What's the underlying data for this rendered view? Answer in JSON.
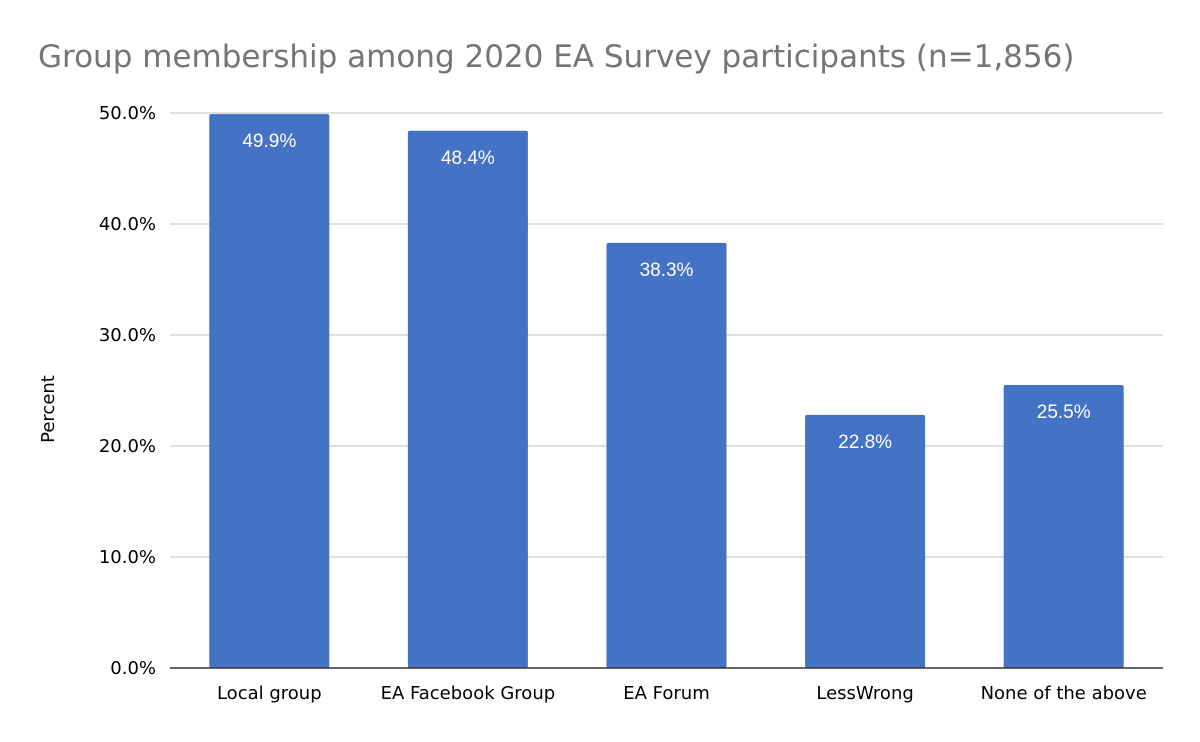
{
  "chart_data": {
    "type": "bar",
    "title": "Group membership among 2020 EA Survey participants (n=1,856)",
    "xlabel": "",
    "ylabel": "Percent",
    "categories": [
      "Local group",
      "EA Facebook Group",
      "EA Forum",
      "LessWrong",
      "None of the above"
    ],
    "values": [
      49.9,
      48.4,
      38.3,
      22.8,
      25.5
    ],
    "data_labels": [
      "49.9%",
      "48.4%",
      "38.3%",
      "22.8%",
      "25.5%"
    ],
    "ylim": [
      0,
      50
    ],
    "yticks": [
      0,
      10,
      20,
      30,
      40,
      50
    ],
    "ytick_labels": [
      "0.0%",
      "10.0%",
      "20.0%",
      "30.0%",
      "40.0%",
      "50.0%"
    ],
    "grid": true,
    "legend": "none",
    "bar_color": "#4472c4"
  }
}
